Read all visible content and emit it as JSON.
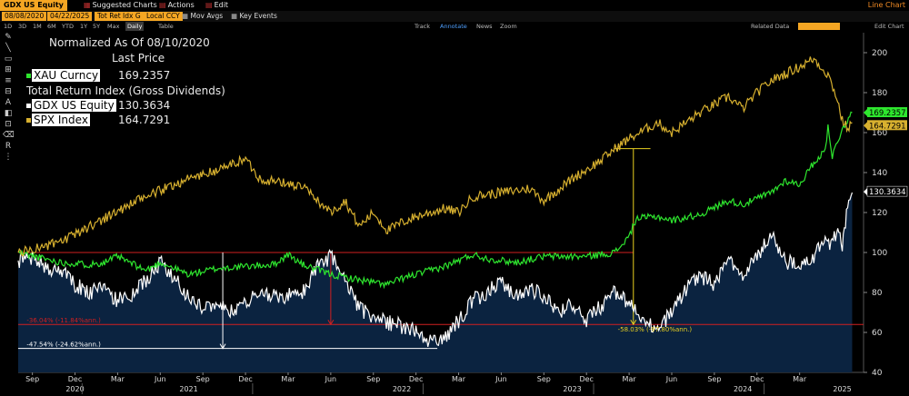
{
  "toolbar": {
    "ticker": "GDX US Equity",
    "menu": [
      "Suggested Charts",
      "Actions",
      "Edit"
    ],
    "chart_type": "Line Chart"
  },
  "params": {
    "start_date": "08/08/2020",
    "end_date": "04/22/2025",
    "field": "Tot Ret Idx G",
    "currency": "Local CCY",
    "mov_avgs": "Mov Avgs",
    "key_events": "Key Events"
  },
  "periods": [
    "1D",
    "3D",
    "1M",
    "6M",
    "YTD",
    "1Y",
    "5Y",
    "Max"
  ],
  "period_selected": "Daily",
  "table_label": "Table",
  "annot_tools": [
    "Track",
    "Annotate",
    "News",
    "Zoom"
  ],
  "right_menu": [
    "Related Data",
    "Edit Chart"
  ],
  "legend": {
    "title": "Normalized As Of 08/10/2020",
    "last_price": "Last Price",
    "xau_name": "XAU Curncy",
    "xau_value": "169.2357",
    "tri_label": "Total Return Index (Gross Dividends)",
    "gdx_name": "GDX US Equity",
    "gdx_value": "130.3634",
    "spx_name": "SPX Index",
    "spx_value": "164.7291"
  },
  "colors": {
    "gold": "#f5a623",
    "xau": "#2ee62e",
    "spx": "#d7b02f",
    "gdx": "#ffffff",
    "area": "#0b2340",
    "red": "#d12020",
    "yellow": "#e8d020"
  },
  "chart_data": {
    "type": "line",
    "ylim": [
      40,
      210
    ],
    "yticks": [
      40,
      60,
      80,
      100,
      120,
      140,
      160,
      180,
      200
    ],
    "x_months": [
      "Sep",
      "Dec",
      "Mar",
      "Jun",
      "Sep",
      "Dec",
      "Mar",
      "Jun",
      "Sep",
      "Dec",
      "Mar",
      "Jun",
      "Sep",
      "Dec",
      "Mar",
      "Jun",
      "Sep",
      "Dec",
      "Mar"
    ],
    "x_years": [
      "2020",
      "2021",
      "2022",
      "2023",
      "2024",
      "2025"
    ],
    "series": [
      {
        "name": "XAU Curncy",
        "last": "169.2357",
        "points": [
          [
            0,
            100
          ],
          [
            3,
            95
          ],
          [
            5,
            94
          ],
          [
            6,
            95
          ],
          [
            7,
            98
          ],
          [
            9,
            91
          ],
          [
            10,
            95
          ],
          [
            12,
            89
          ],
          [
            14,
            92
          ],
          [
            18,
            94
          ],
          [
            19,
            99
          ],
          [
            20,
            94
          ],
          [
            22,
            89
          ],
          [
            25,
            85
          ],
          [
            26,
            84
          ],
          [
            27,
            87
          ],
          [
            30,
            93
          ],
          [
            32,
            99
          ],
          [
            33,
            97
          ],
          [
            35,
            95
          ],
          [
            37,
            98
          ],
          [
            40,
            98
          ],
          [
            42,
            100
          ],
          [
            43,
            108
          ],
          [
            43.5,
            117
          ],
          [
            45,
            118
          ],
          [
            46,
            116
          ],
          [
            48,
            119
          ],
          [
            50,
            126
          ],
          [
            51,
            124
          ],
          [
            53,
            130
          ],
          [
            54,
            136
          ],
          [
            55,
            134
          ],
          [
            56,
            145
          ],
          [
            56.8,
            151
          ],
          [
            57,
            164
          ],
          [
            57.3,
            148
          ],
          [
            58,
            162
          ],
          [
            58.7,
            170
          ]
        ]
      },
      {
        "name": "SPX Index",
        "last": "164.7291",
        "points": [
          [
            0,
            100
          ],
          [
            3,
            105
          ],
          [
            6,
            117
          ],
          [
            9,
            128
          ],
          [
            12,
            137
          ],
          [
            14,
            141
          ],
          [
            16,
            147
          ],
          [
            17,
            137
          ],
          [
            20,
            133
          ],
          [
            22,
            120
          ],
          [
            23,
            126
          ],
          [
            24,
            113
          ],
          [
            25,
            120
          ],
          [
            26,
            111
          ],
          [
            27,
            115
          ],
          [
            28,
            118
          ],
          [
            30,
            122
          ],
          [
            31,
            120
          ],
          [
            32,
            128
          ],
          [
            34,
            130
          ],
          [
            36,
            132
          ],
          [
            37,
            126
          ],
          [
            39,
            137
          ],
          [
            41,
            146
          ],
          [
            42,
            152
          ],
          [
            43,
            157
          ],
          [
            45,
            165
          ],
          [
            46,
            160
          ],
          [
            48,
            170
          ],
          [
            50,
            178
          ],
          [
            51,
            172
          ],
          [
            52,
            180
          ],
          [
            53,
            186
          ],
          [
            55,
            193
          ],
          [
            56,
            197
          ],
          [
            57,
            189
          ],
          [
            57.6,
            178
          ],
          [
            58,
            166
          ],
          [
            58.4,
            162
          ],
          [
            58.7,
            165
          ]
        ]
      },
      {
        "name": "GDX US Equity",
        "last": "130.3634",
        "points": [
          [
            0,
            96
          ],
          [
            1,
            98
          ],
          [
            2,
            92
          ],
          [
            3,
            91
          ],
          [
            4,
            84
          ],
          [
            5,
            80
          ],
          [
            6,
            82
          ],
          [
            7,
            76
          ],
          [
            8,
            78
          ],
          [
            10,
            95
          ],
          [
            11,
            87
          ],
          [
            12,
            78
          ],
          [
            13,
            72
          ],
          [
            14,
            76
          ],
          [
            15,
            70
          ],
          [
            16,
            75
          ],
          [
            17,
            80
          ],
          [
            18,
            78
          ],
          [
            20,
            79
          ],
          [
            21,
            92
          ],
          [
            22,
            98
          ],
          [
            23,
            86
          ],
          [
            24,
            72
          ],
          [
            25,
            68
          ],
          [
            26,
            65
          ],
          [
            27,
            63
          ],
          [
            28,
            60
          ],
          [
            29,
            55
          ],
          [
            30,
            57
          ],
          [
            31,
            66
          ],
          [
            32,
            76
          ],
          [
            33,
            80
          ],
          [
            34,
            86
          ],
          [
            35,
            78
          ],
          [
            36,
            82
          ],
          [
            37,
            78
          ],
          [
            38,
            70
          ],
          [
            39,
            74
          ],
          [
            40,
            66
          ],
          [
            42,
            80
          ],
          [
            43,
            74
          ],
          [
            44,
            65
          ],
          [
            45,
            62
          ],
          [
            46,
            70
          ],
          [
            47,
            82
          ],
          [
            48,
            88
          ],
          [
            49,
            84
          ],
          [
            50,
            96
          ],
          [
            51,
            86
          ],
          [
            52,
            99
          ],
          [
            53,
            108
          ],
          [
            54,
            96
          ],
          [
            55,
            92
          ],
          [
            56,
            98
          ],
          [
            56.8,
            107
          ],
          [
            57.2,
            102
          ],
          [
            57.6,
            110
          ],
          [
            58,
            104
          ],
          [
            58.3,
            118
          ],
          [
            58.7,
            130
          ]
        ]
      }
    ],
    "annotations": [
      {
        "text": "-36.04% (-11.84%ann.)",
        "color": "red"
      },
      {
        "text": "-47.54% (-24.62%ann.)",
        "color": "white"
      },
      {
        "text": "-58.03% (-97.80%ann.)",
        "color": "yellow"
      }
    ]
  }
}
